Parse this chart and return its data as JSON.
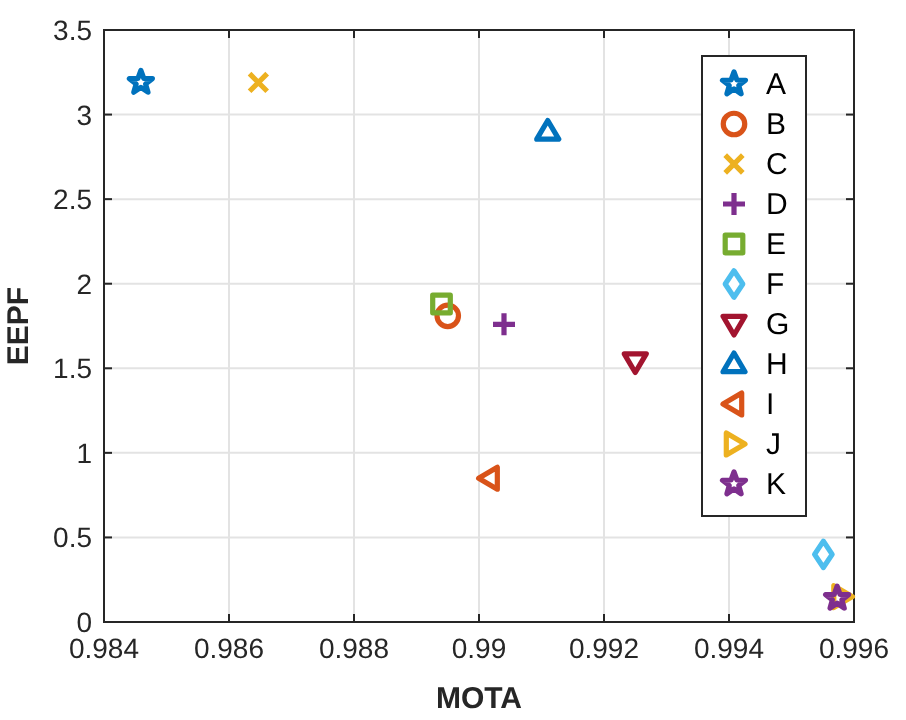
{
  "chart_data": {
    "type": "scatter",
    "xlabel": "MOTA",
    "ylabel": "EEPF",
    "xlim": [
      0.984,
      0.996
    ],
    "ylim": [
      0,
      3.5
    ],
    "xticks": [
      0.984,
      0.986,
      0.988,
      0.99,
      0.992,
      0.994,
      0.996
    ],
    "yticks": [
      0,
      0.5,
      1,
      1.5,
      2,
      2.5,
      3,
      3.5
    ],
    "grid": true,
    "legend": "top right",
    "series": [
      {
        "name": "A",
        "color": "#0072bd",
        "marker": "star",
        "x": [
          0.98459
        ],
        "values": [
          3.19
        ]
      },
      {
        "name": "B",
        "color": "#d95319",
        "marker": "circle",
        "x": [
          0.9895
        ],
        "values": [
          1.81
        ]
      },
      {
        "name": "C",
        "color": "#edb120",
        "marker": "x",
        "x": [
          0.98647
        ],
        "values": [
          3.19
        ]
      },
      {
        "name": "D",
        "color": "#7e2f8e",
        "marker": "cross",
        "x": [
          0.9904
        ],
        "values": [
          1.76
        ]
      },
      {
        "name": "E",
        "color": "#77ac30",
        "marker": "square",
        "x": [
          0.9894
        ],
        "values": [
          1.88
        ]
      },
      {
        "name": "F",
        "color": "#4dbeee",
        "marker": "diamond",
        "x": [
          0.99551
        ],
        "values": [
          0.4
        ]
      },
      {
        "name": "G",
        "color": "#a2142f",
        "marker": "triangle-down",
        "x": [
          0.9925
        ],
        "values": [
          1.54
        ]
      },
      {
        "name": "H",
        "color": "#0072bd",
        "marker": "triangle",
        "x": [
          0.9911
        ],
        "values": [
          2.9
        ]
      },
      {
        "name": "I",
        "color": "#d95319",
        "marker": "triangle-left",
        "x": [
          0.99017
        ],
        "values": [
          0.85
        ]
      },
      {
        "name": "J",
        "color": "#edb120",
        "marker": "triangle-right",
        "x": [
          0.9958
        ],
        "values": [
          0.15
        ]
      },
      {
        "name": "K",
        "color": "#7e2f8e",
        "marker": "star",
        "x": [
          0.99573
        ],
        "values": [
          0.14
        ]
      }
    ]
  }
}
